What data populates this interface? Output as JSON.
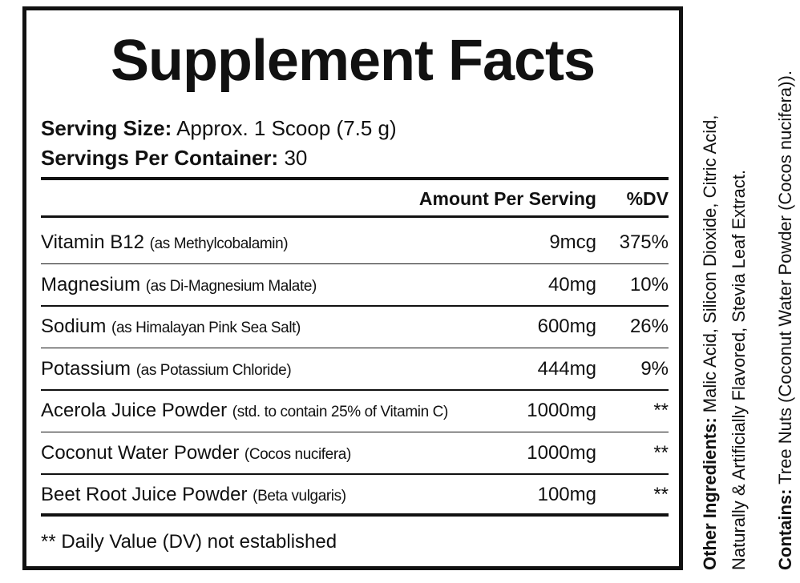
{
  "header": {
    "title": "Supplement Facts"
  },
  "serving": {
    "size_label": "Serving Size:",
    "size_value": "Approx. 1 Scoop (7.5 g)",
    "per_container_label": "Servings Per Container:",
    "per_container_value": "30"
  },
  "table": {
    "header": {
      "amount": "Amount Per Serving",
      "dv": "%DV"
    },
    "rows": [
      {
        "name": "Vitamin B12",
        "note": "(as Methylcobalamin)",
        "amount": "9mcg",
        "dv": "375%"
      },
      {
        "name": "Magnesium",
        "note": "(as Di-Magnesium Malate)",
        "amount": "40mg",
        "dv": "10%"
      },
      {
        "name": "Sodium",
        "note": "(as Himalayan Pink Sea Salt)",
        "amount": "600mg",
        "dv": "26%"
      },
      {
        "name": "Potassium",
        "note": "(as Potassium Chloride)",
        "amount": "444mg",
        "dv": "9%"
      },
      {
        "name": "Acerola Juice Powder",
        "note": "(std. to contain 25% of Vitamin C)",
        "amount": "1000mg",
        "dv": "**"
      },
      {
        "name": "Coconut Water Powder",
        "note": "(Cocos nucifera)",
        "amount": "1000mg",
        "dv": "**"
      },
      {
        "name": "Beet Root Juice Powder",
        "note": "(Beta vulgaris)",
        "amount": "100mg",
        "dv": "**"
      }
    ]
  },
  "footnote": "** Daily Value (DV) not established",
  "other_ingredients": {
    "label": "Other Ingredients:",
    "lines": [
      "Malic Acid, Silicon Dioxide, Citric Acid,",
      "Naturally & Artificially Flavored, Stevia Leaf Extract."
    ]
  },
  "contains": {
    "label": "Contains:",
    "text": "Tree Nuts (Coconut Water Powder (Cocos nucifera))."
  }
}
